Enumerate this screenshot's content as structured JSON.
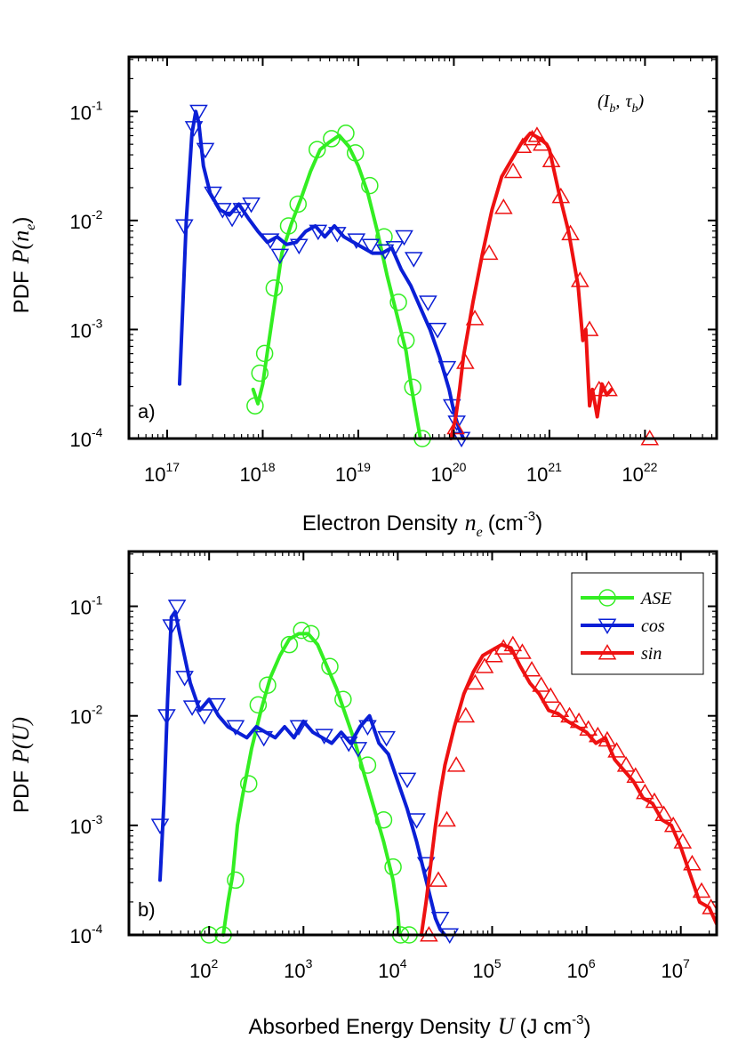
{
  "panels": [
    {
      "id": "a",
      "type": "line",
      "panel_label": "a)",
      "ylabel_prefix": "PDF",
      "ylabel_math": "P(n",
      "ylabel_sub": "e",
      "ylabel_close": ")",
      "xlabel_text": "Electron Density",
      "xlabel_math": "n",
      "xlabel_sub": "e",
      "xlabel_unit": "(cm",
      "xlabel_unit_exp": "-3",
      "xlabel_unit_close": ")",
      "annotation": {
        "open": "(",
        "i": "I",
        "i_sub": "b",
        "comma": ",",
        "tau": "τ",
        "tau_sub": "b",
        "close": ")"
      },
      "xlim_log10": [
        16.6,
        22.75
      ],
      "ylim_log10": [
        -4,
        -0.5
      ],
      "xticks": [
        {
          "base": "10",
          "exp": "17",
          "log": 17
        },
        {
          "base": "10",
          "exp": "18",
          "log": 18
        },
        {
          "base": "10",
          "exp": "19",
          "log": 19
        },
        {
          "base": "10",
          "exp": "20",
          "log": 20
        },
        {
          "base": "10",
          "exp": "21",
          "log": 21
        },
        {
          "base": "10",
          "exp": "22",
          "log": 22
        }
      ],
      "yticks": [
        {
          "base": "10",
          "exp": "-1",
          "log": -1
        },
        {
          "base": "10",
          "exp": "-2",
          "log": -2
        },
        {
          "base": "10",
          "exp": "-3",
          "log": -3
        },
        {
          "base": "10",
          "exp": "-4",
          "log": -4
        }
      ],
      "series": [
        {
          "name": "ASE",
          "color": "#33ee22",
          "marker": "circle",
          "x": [
            17.9,
            17.95,
            18.0,
            18.05,
            18.1,
            18.15,
            18.2,
            18.3,
            18.4,
            18.5,
            18.6,
            18.7,
            18.8,
            18.9,
            19.0,
            19.1,
            19.2,
            19.3,
            19.4,
            19.5,
            19.55,
            19.6,
            19.65
          ],
          "y": [
            -3.55,
            -3.68,
            -3.5,
            -3.2,
            -2.9,
            -2.6,
            -2.3,
            -2.03,
            -1.8,
            -1.55,
            -1.35,
            -1.28,
            -1.22,
            -1.32,
            -1.5,
            -1.75,
            -2.1,
            -2.5,
            -2.85,
            -3.2,
            -3.5,
            -3.75,
            -4.0
          ],
          "marker_x": [
            17.92,
            17.97,
            18.02,
            18.12,
            18.27,
            18.37,
            18.57,
            18.72,
            18.87,
            18.97,
            19.12,
            19.27,
            19.42,
            19.5,
            19.57,
            19.67
          ],
          "marker_y": [
            -3.7,
            -3.4,
            -3.22,
            -2.62,
            -2.05,
            -1.85,
            -1.35,
            -1.25,
            -1.2,
            -1.38,
            -1.68,
            -2.15,
            -2.75,
            -3.1,
            -3.53,
            -4.0
          ]
        },
        {
          "name": "cos",
          "color": "#0a1fd6",
          "marker": "triangle-down",
          "x": [
            17.13,
            17.2,
            17.26,
            17.3,
            17.33,
            17.38,
            17.45,
            17.55,
            17.65,
            17.75,
            17.85,
            17.95,
            18.05,
            18.15,
            18.25,
            18.35,
            18.45,
            18.55,
            18.65,
            18.75,
            18.85,
            18.95,
            19.05,
            19.15,
            19.25,
            19.35,
            19.45,
            19.55,
            19.65,
            19.75,
            19.85,
            19.95,
            20.0,
            20.05,
            20.1
          ],
          "y": [
            -3.5,
            -2.0,
            -1.2,
            -1.0,
            -1.1,
            -1.5,
            -1.75,
            -1.9,
            -1.95,
            -1.85,
            -1.98,
            -2.1,
            -2.2,
            -2.15,
            -2.22,
            -2.2,
            -2.1,
            -2.05,
            -2.15,
            -2.05,
            -2.15,
            -2.2,
            -2.25,
            -2.3,
            -2.3,
            -2.25,
            -2.45,
            -2.6,
            -2.8,
            -3.0,
            -3.25,
            -3.55,
            -3.75,
            -3.9,
            -4.0
          ],
          "marker_x": [
            17.18,
            17.28,
            17.33,
            17.4,
            17.48,
            17.58,
            17.68,
            17.78,
            17.88,
            18.08,
            18.18,
            18.38,
            18.58,
            18.78,
            18.98,
            19.13,
            19.28,
            19.38,
            19.48,
            19.58,
            19.73,
            19.83,
            19.93,
            19.98,
            20.03,
            20.08
          ],
          "marker_y": [
            -2.05,
            -1.15,
            -1.0,
            -1.35,
            -1.75,
            -1.9,
            -1.98,
            -1.9,
            -1.85,
            -2.18,
            -2.32,
            -2.23,
            -2.1,
            -2.12,
            -2.18,
            -2.23,
            -2.28,
            -2.25,
            -2.15,
            -2.35,
            -2.75,
            -3.0,
            -3.35,
            -3.7,
            -3.85,
            -4.0
          ]
        },
        {
          "name": "sin",
          "color": "#ee1111",
          "marker": "triangle-up",
          "x": [
            19.97,
            20.02,
            20.06,
            20.1,
            20.15,
            20.2,
            20.3,
            20.4,
            20.5,
            20.6,
            20.7,
            20.8,
            20.9,
            20.97,
            21.0,
            21.05,
            21.1,
            21.2,
            21.3,
            21.35,
            21.38,
            21.4,
            21.42,
            21.45,
            21.5,
            21.55,
            21.6,
            21.65
          ],
          "y": [
            -4.0,
            -3.8,
            -3.55,
            -3.25,
            -3.0,
            -2.75,
            -2.3,
            -1.9,
            -1.6,
            -1.45,
            -1.3,
            -1.2,
            -1.25,
            -1.3,
            -1.35,
            -1.55,
            -1.75,
            -2.1,
            -2.6,
            -3.1,
            -3.0,
            -3.35,
            -3.7,
            -3.55,
            -3.8,
            -3.5,
            -3.6,
            -3.55
          ],
          "marker_x": [
            20.02,
            20.12,
            20.22,
            20.37,
            20.52,
            20.62,
            20.72,
            20.82,
            20.87,
            20.92,
            21.02,
            21.12,
            21.22,
            21.32,
            21.42,
            21.52,
            21.62,
            22.05
          ],
          "marker_y": [
            -3.9,
            -3.3,
            -2.9,
            -2.3,
            -1.88,
            -1.55,
            -1.32,
            -1.25,
            -1.22,
            -1.3,
            -1.45,
            -1.78,
            -2.12,
            -2.55,
            -3.0,
            -3.55,
            -3.55,
            -4.0
          ]
        }
      ]
    },
    {
      "id": "b",
      "type": "line",
      "panel_label": "b)",
      "ylabel_prefix": "PDF",
      "ylabel_math": "P(U)",
      "ylabel_sub": "",
      "ylabel_close": "",
      "xlabel_text": "Absorbed Energy Density",
      "xlabel_math": "U",
      "xlabel_sub": "",
      "xlabel_unit": "(J cm",
      "xlabel_unit_exp": "-3",
      "xlabel_unit_close": ")",
      "xlim_log10": [
        1.15,
        7.38
      ],
      "ylim_log10": [
        -4,
        -0.5
      ],
      "xticks": [
        {
          "base": "10",
          "exp": "2",
          "log": 2
        },
        {
          "base": "10",
          "exp": "3",
          "log": 3
        },
        {
          "base": "10",
          "exp": "4",
          "log": 4
        },
        {
          "base": "10",
          "exp": "5",
          "log": 5
        },
        {
          "base": "10",
          "exp": "6",
          "log": 6
        },
        {
          "base": "10",
          "exp": "7",
          "log": 7
        }
      ],
      "yticks": [
        {
          "base": "10",
          "exp": "-1",
          "log": -1
        },
        {
          "base": "10",
          "exp": "-2",
          "log": -2
        },
        {
          "base": "10",
          "exp": "-3",
          "log": -3
        },
        {
          "base": "10",
          "exp": "-4",
          "log": -4
        }
      ],
      "legend": {
        "position": "top-right",
        "entries": [
          "ASE",
          "cos",
          "sin"
        ]
      },
      "series": [
        {
          "name": "ASE",
          "color": "#33ee22",
          "marker": "circle",
          "x": [
            2.15,
            2.2,
            2.25,
            2.3,
            2.35,
            2.45,
            2.55,
            2.65,
            2.75,
            2.85,
            2.95,
            3.05,
            3.15,
            3.25,
            3.35,
            3.45,
            3.55,
            3.65,
            3.75,
            3.85,
            3.95,
            4.0,
            4.02
          ],
          "y": [
            -4.0,
            -3.7,
            -3.45,
            -3.0,
            -2.75,
            -2.3,
            -1.95,
            -1.65,
            -1.45,
            -1.3,
            -1.25,
            -1.25,
            -1.35,
            -1.55,
            -1.75,
            -2.0,
            -2.25,
            -2.55,
            -2.85,
            -3.15,
            -3.5,
            -3.8,
            -4.0
          ],
          "marker_x": [
            2.0,
            2.15,
            2.28,
            2.42,
            2.52,
            2.62,
            2.85,
            2.98,
            3.08,
            3.28,
            3.42,
            3.68,
            3.85,
            3.95,
            4.03,
            4.12
          ],
          "marker_y": [
            -4.0,
            -4.0,
            -3.5,
            -2.62,
            -1.9,
            -1.72,
            -1.35,
            -1.22,
            -1.25,
            -1.55,
            -1.85,
            -2.45,
            -2.95,
            -3.38,
            -4.0,
            -4.0
          ]
        },
        {
          "name": "cos",
          "color": "#0a1fd6",
          "marker": "triangle-down",
          "x": [
            1.48,
            1.52,
            1.56,
            1.6,
            1.64,
            1.7,
            1.8,
            1.9,
            2.0,
            2.1,
            2.2,
            2.3,
            2.4,
            2.5,
            2.6,
            2.7,
            2.8,
            2.9,
            3.0,
            3.1,
            3.2,
            3.3,
            3.4,
            3.5,
            3.6,
            3.7,
            3.8,
            3.9,
            4.0,
            4.1,
            4.2,
            4.3,
            4.4,
            4.45,
            4.5
          ],
          "y": [
            -3.5,
            -2.8,
            -1.85,
            -1.1,
            -1.05,
            -1.3,
            -1.7,
            -1.95,
            -1.85,
            -2.0,
            -2.1,
            -2.15,
            -2.2,
            -2.1,
            -2.15,
            -2.2,
            -2.1,
            -2.2,
            -2.05,
            -2.15,
            -2.2,
            -2.25,
            -2.15,
            -2.25,
            -2.1,
            -2.0,
            -2.25,
            -2.35,
            -2.6,
            -2.85,
            -3.15,
            -3.5,
            -3.85,
            -3.95,
            -4.0
          ],
          "marker_x": [
            1.48,
            1.55,
            1.6,
            1.66,
            1.74,
            1.82,
            1.95,
            2.08,
            2.28,
            2.58,
            2.95,
            3.22,
            3.48,
            3.58,
            3.68,
            3.88,
            4.1,
            4.2,
            4.3,
            4.45,
            4.55
          ],
          "marker_y": [
            -3.0,
            -2.0,
            -1.18,
            -1.0,
            -1.65,
            -1.92,
            -2.0,
            -1.9,
            -2.1,
            -2.2,
            -2.1,
            -2.18,
            -2.25,
            -2.3,
            -2.1,
            -2.2,
            -2.58,
            -2.95,
            -3.35,
            -3.85,
            -4.0
          ]
        },
        {
          "name": "sin",
          "color": "#ee1111",
          "marker": "triangle-up",
          "x": [
            4.25,
            4.3,
            4.35,
            4.4,
            4.45,
            4.5,
            4.6,
            4.7,
            4.8,
            4.9,
            5.0,
            5.1,
            5.2,
            5.3,
            5.4,
            5.5,
            5.6,
            5.7,
            5.8,
            5.9,
            6.0,
            6.1,
            6.2,
            6.3,
            6.4,
            6.5,
            6.6,
            6.7,
            6.8,
            6.9,
            7.0,
            7.1,
            7.2,
            7.3,
            7.38
          ],
          "y": [
            -4.0,
            -3.7,
            -3.35,
            -3.0,
            -2.7,
            -2.45,
            -2.1,
            -1.8,
            -1.6,
            -1.45,
            -1.4,
            -1.35,
            -1.38,
            -1.55,
            -1.7,
            -1.8,
            -1.95,
            -1.98,
            -2.05,
            -2.1,
            -2.15,
            -2.25,
            -2.2,
            -2.4,
            -2.5,
            -2.6,
            -2.75,
            -2.8,
            -2.95,
            -3.0,
            -3.2,
            -3.45,
            -3.7,
            -3.75,
            -3.9
          ],
          "marker_x": [
            4.33,
            4.43,
            4.52,
            4.62,
            4.72,
            4.82,
            4.92,
            5.02,
            5.12,
            5.22,
            5.32,
            5.42,
            5.52,
            5.62,
            5.72,
            5.82,
            5.92,
            6.02,
            6.12,
            6.22,
            6.32,
            6.42,
            6.52,
            6.62,
            6.72,
            6.82,
            6.92,
            7.02,
            7.12,
            7.22,
            7.32
          ],
          "marker_y": [
            -4.0,
            -3.5,
            -2.95,
            -2.45,
            -2.0,
            -1.7,
            -1.55,
            -1.45,
            -1.38,
            -1.35,
            -1.42,
            -1.58,
            -1.72,
            -1.82,
            -1.95,
            -2.0,
            -2.05,
            -2.12,
            -2.18,
            -2.22,
            -2.32,
            -2.45,
            -2.55,
            -2.7,
            -2.78,
            -2.9,
            -3.0,
            -3.15,
            -3.35,
            -3.6,
            -3.75
          ]
        }
      ]
    }
  ]
}
